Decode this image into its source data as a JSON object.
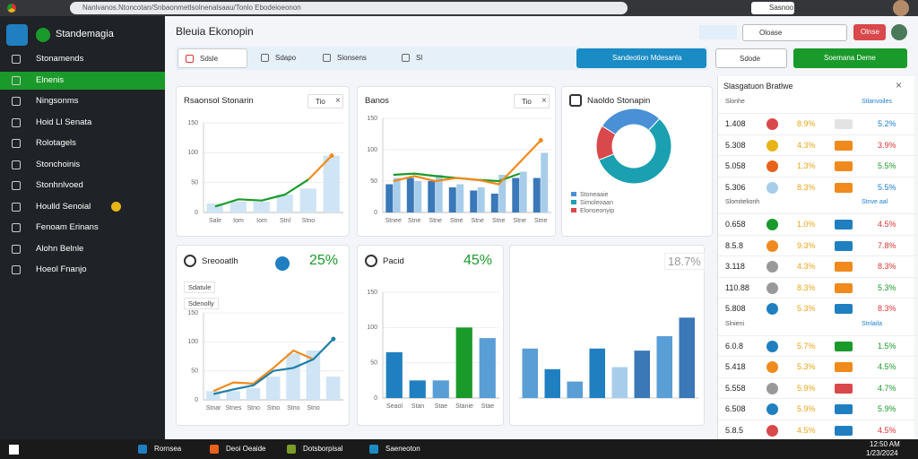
{
  "browser": {
    "url": "Nanlvanos.Ntoncotan/Snbaonmetlsolnenalsaau/Tonlo Ebodeioeonon",
    "tab": "Sasnoo"
  },
  "sidebar": {
    "brand": "Standemagia",
    "active": 1,
    "badge_item": 7,
    "items": [
      "Stonamends",
      "Elnenis",
      "Ningsonms",
      "Hoid Ll Senata",
      "Rolotagels",
      "Stonchoinis",
      "Stonhnlvoed",
      "Houlld Senoial",
      "Fenoam Erinans",
      "Alohn Belnle",
      "Hoeol Fnanjo"
    ]
  },
  "header": {
    "title": "Bleuia Ekonopin",
    "search": "Oloase",
    "button": "Olnse"
  },
  "toolbar": {
    "filters": [
      "Sdsle",
      "Sdapo",
      "Sionsens",
      "Sl"
    ],
    "primary": "Sandeotion Mdesanla",
    "select": "Sdode",
    "action": "Soemana Deme"
  },
  "cards": [
    {
      "title": "Rsaonsol Stonarin",
      "tag": "Tio",
      "chart": {
        "type": "combo",
        "categories": [
          "Sale",
          "Iom",
          "Iom",
          "Stnl",
          "Stno",
          null
        ],
        "ylim": [
          0,
          150
        ],
        "yticks": [
          0,
          50,
          100,
          150
        ],
        "series": [
          {
            "type": "bar",
            "color": "#cfe4f5",
            "values": [
              15,
              18,
              18,
              30,
              40,
              95
            ]
          },
          {
            "type": "line",
            "color": "#1a9a2a",
            "values": [
              10,
              22,
              20,
              30,
              55,
              null
            ]
          },
          {
            "type": "line",
            "color": "#f08a1c",
            "values": [
              null,
              null,
              null,
              null,
              55,
              95
            ]
          }
        ]
      }
    },
    {
      "title": "Banos",
      "tag": "Tio",
      "chart": {
        "type": "combo",
        "categories": [
          "Stnee",
          "Stne",
          "Stne",
          "Stne",
          "Stne",
          "Stne",
          "Stne",
          "Stne"
        ],
        "ylim": [
          0,
          150
        ],
        "yticks": [
          0,
          50,
          100,
          150
        ],
        "series": [
          {
            "type": "bar",
            "color": "#3a78b8",
            "values": [
              45,
              55,
              50,
              40,
              35,
              30,
              55,
              55
            ]
          },
          {
            "type": "bar",
            "color": "#a8cdea",
            "values": [
              55,
              50,
              60,
              45,
              40,
              60,
              65,
              95
            ]
          },
          {
            "type": "line",
            "color": "#1a9a2a",
            "values": [
              60,
              62,
              58,
              55,
              52,
              50,
              62,
              null
            ]
          },
          {
            "type": "line",
            "color": "#f08a1c",
            "values": [
              50,
              58,
              50,
              55,
              52,
              45,
              80,
              115
            ]
          }
        ]
      }
    },
    {
      "title": "Naoldo Stonapin",
      "chart": {
        "type": "donut",
        "categories": [
          "Stoneaaie",
          "Simoleoaan",
          "Elonseonyip"
        ],
        "values": [
          28,
          57,
          15
        ],
        "colors": [
          "#4a90d6",
          "#1aa0b0",
          "#d9484a"
        ]
      }
    },
    {
      "title": "Sreooatlh",
      "value": "25%",
      "labels": [
        "Sdatule",
        "Sdenolly"
      ],
      "chart": {
        "type": "combo",
        "categories": [
          "Stnar",
          "Stnes",
          "Stno",
          "Stno",
          "Stno",
          "Stno",
          null
        ],
        "ylim": [
          0,
          150
        ],
        "yticks": [
          0,
          50,
          100,
          150
        ],
        "series": [
          {
            "type": "bar",
            "color": "#cfe4f5",
            "values": [
              15,
              15,
              20,
              40,
              80,
              85,
              40
            ]
          },
          {
            "type": "line",
            "color": "#f08a1c",
            "values": [
              15,
              30,
              28,
              55,
              85,
              70,
              null
            ]
          },
          {
            "type": "line",
            "color": "#1f7fa8",
            "values": [
              10,
              18,
              25,
              50,
              55,
              70,
              105
            ]
          }
        ]
      }
    },
    {
      "title": "Pacid",
      "value": "45%",
      "chart": {
        "type": "combo",
        "categories": [
          "Seaol",
          "Stan",
          "Stae",
          "Stanie",
          "Stae"
        ],
        "ylim": [
          0,
          150
        ],
        "yticks": [
          0,
          50,
          100,
          150
        ],
        "series": [
          {
            "type": "bar",
            "colors": [
              "#1f7fc0",
              "#1f7fc0",
              "#5a9ed6",
              "#1a9a2a",
              "#5a9ed6"
            ],
            "values": [
              65,
              25,
              25,
              100,
              85
            ]
          }
        ]
      }
    },
    {
      "value": "18.7%",
      "chart": {
        "type": "combo",
        "categories": [
          null,
          null,
          null,
          null,
          null,
          null,
          null,
          null
        ],
        "ylim": [
          0,
          100
        ],
        "series": [
          {
            "type": "bar",
            "colors": [
              "#5a9ed6",
              "#1f7fc0",
              "#5a9ed6",
              "#1f7fc0",
              "#a8cdea",
              "#3a78b8",
              "#5a9ed6",
              "#3a78b8"
            ],
            "values": [
              48,
              28,
              16,
              48,
              30,
              46,
              60,
              78
            ]
          }
        ]
      }
    }
  ],
  "table": {
    "title": "Slasgatuon Bratlwe",
    "sections": [
      {
        "label": "Slonhe",
        "note": "Stlanvoiles",
        "rows": [
          {
            "value": "1.408",
            "icon": "#d9484a",
            "pct": "8.9%",
            "swatch": "#e3e3e3",
            "change": "5.2%",
            "trend": "#1a7fd0"
          },
          {
            "value": "5.308",
            "icon": "#e8b417",
            "pct": "4.3%",
            "swatch": "#f08a1c",
            "change": "3.9%",
            "trend": "#d33"
          },
          {
            "value": "5.058",
            "icon": "#e8621c",
            "pct": "1.3%",
            "swatch": "#f08a1c",
            "change": "5.5%",
            "trend": "#1a9a2a"
          },
          {
            "value": "5.306",
            "icon": "#a8cdea",
            "pct": "8.3%",
            "swatch": "#f08a1c",
            "change": "5.5%",
            "trend": "#1a7fd0"
          }
        ]
      },
      {
        "label": "Slomitelionh",
        "note": "Stnve aal",
        "rows": [
          {
            "value": "0.658",
            "icon": "#1a9a2a",
            "pct": "1.0%",
            "swatch": "#1f7fc0",
            "change": "4.5%",
            "trend": "#d33"
          },
          {
            "value": "8.5.8",
            "icon": "#f08a1c",
            "pct": "9.3%",
            "swatch": "#1f7fc0",
            "change": "7.8%",
            "trend": "#d33"
          },
          {
            "value": "3.118",
            "icon": "#999999",
            "pct": "4.3%",
            "swatch": "#f08a1c",
            "change": "8.3%",
            "trend": "#d33"
          },
          {
            "value": "110.88",
            "icon": "#999999",
            "pct": "8.3%",
            "swatch": "#f08a1c",
            "change": "5.3%",
            "trend": "#1a9a2a"
          },
          {
            "value": "5.808",
            "icon": "#1f7fc0",
            "pct": "5.3%",
            "swatch": "#1f7fc0",
            "change": "8.3%",
            "trend": "#d33"
          }
        ]
      },
      {
        "label": "Slnieni",
        "note": "Stnlaila",
        "rows": [
          {
            "value": "6.0.8",
            "icon": "#1f7fc0",
            "pct": "5.7%",
            "swatch": "#1a9a2a",
            "change": "1.5%",
            "trend": "#1a9a2a"
          },
          {
            "value": "5.418",
            "icon": "#f08a1c",
            "pct": "5.3%",
            "swatch": "#f08a1c",
            "change": "4.5%",
            "trend": "#1a9a2a"
          },
          {
            "value": "5.558",
            "icon": "#999999",
            "pct": "5.9%",
            "swatch": "#d9484a",
            "change": "4.7%",
            "trend": "#1a9a2a"
          },
          {
            "value": "6.508",
            "icon": "#1f7fc0",
            "pct": "5.9%",
            "swatch": "#1f7fc0",
            "change": "5.9%",
            "trend": "#1a9a2a"
          },
          {
            "value": "5.8.5",
            "icon": "#d9484a",
            "pct": "4.5%",
            "swatch": "#1f7fc0",
            "change": "4.5%",
            "trend": "#d33"
          }
        ]
      }
    ]
  },
  "taskbar": {
    "items": [
      "Rornsea",
      "Deoi Oeaide",
      "Dotsborpisal",
      "Saeneoton"
    ],
    "time": "12:50 AM",
    "date": "1/23/2024"
  }
}
